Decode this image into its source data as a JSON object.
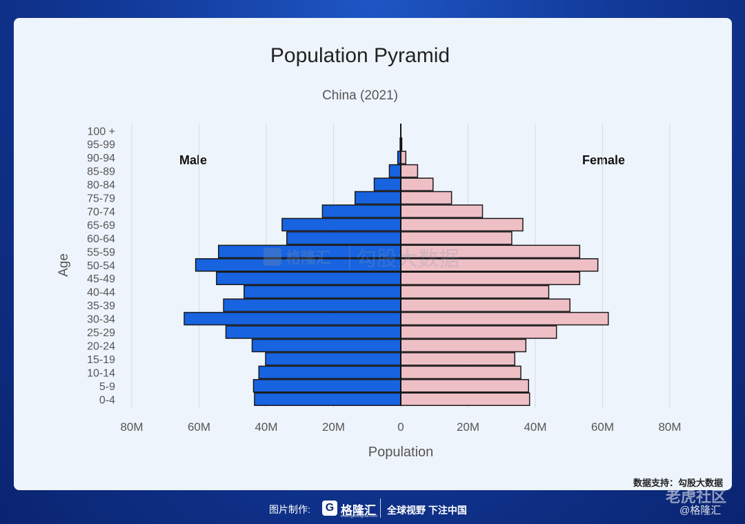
{
  "chart_data": {
    "type": "bar",
    "orientation": "horizontal-pyramid",
    "title": "Population Pyramid",
    "subtitle": "China (2021)",
    "xlabel": "Population",
    "ylabel": "Age",
    "categories": [
      "0-4",
      "5-9",
      "10-14",
      "15-19",
      "20-24",
      "25-29",
      "30-34",
      "35-39",
      "40-44",
      "45-49",
      "50-54",
      "55-59",
      "60-64",
      "65-69",
      "70-74",
      "75-79",
      "80-84",
      "85-89",
      "90-94",
      "95-99",
      "100 +"
    ],
    "series": [
      {
        "name": "Male",
        "color": "#1763e0",
        "values": [
          43.5,
          43.8,
          42.2,
          40.2,
          44.2,
          52.0,
          64.4,
          52.7,
          46.6,
          54.8,
          61.0,
          54.2,
          33.9,
          35.3,
          23.3,
          13.6,
          7.9,
          3.4,
          0.9,
          0.2,
          0.0
        ]
      },
      {
        "name": "Female",
        "color": "#efbfc6",
        "values": [
          38.3,
          38.0,
          35.7,
          33.9,
          37.2,
          46.3,
          61.7,
          50.3,
          44.0,
          53.2,
          58.6,
          53.2,
          33.0,
          36.3,
          24.3,
          15.1,
          9.6,
          5.0,
          1.5,
          0.3,
          0.0
        ]
      }
    ],
    "x_ticks": [
      "80M",
      "60M",
      "40M",
      "20M",
      "0",
      "20M",
      "40M",
      "60M",
      "80M"
    ],
    "xlim": [
      -80,
      80
    ],
    "x_unit": "M",
    "grid": "vertical",
    "legend": "inline labels: Male upper-left, Female upper-right"
  },
  "source_text": "数据支持：勾股大数据",
  "footer": {
    "credit": "图片制作:",
    "brand": "格隆汇",
    "brand_sub": "www.gelonghui.com",
    "slogan": "全球视野 下注中国",
    "watermark": "@格隆汇"
  },
  "overlay_watermark": "老虎社区",
  "center_watermark": {
    "brand": "格隆汇",
    "product": "勾股大数据"
  },
  "colors": {
    "male": "#1763e0",
    "female": "#efbfc6",
    "card": "#eef4fb",
    "background": "#123a9a"
  }
}
